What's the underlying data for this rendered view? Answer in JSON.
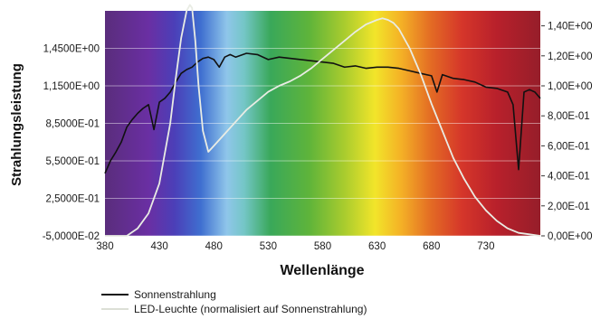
{
  "chart_data": {
    "type": "line",
    "xlabel": "Wellenlänge",
    "ylabel_left": "Strahlungsleistung",
    "ylabel_right": "",
    "xlim": [
      380,
      780
    ],
    "x_ticks": [
      "380",
      "430",
      "480",
      "530",
      "580",
      "630",
      "680",
      "730"
    ],
    "x_tick_values": [
      380,
      430,
      480,
      530,
      580,
      630,
      680,
      730
    ],
    "ylim_left": [
      -0.05,
      1.75
    ],
    "y_ticks_left": [
      "-5,0000E-02",
      "2,5000E-01",
      "5,5000E-01",
      "8,5000E-01",
      "1,1500E+00",
      "1,4500E+00"
    ],
    "y_tick_values_left": [
      -0.05,
      0.25,
      0.55,
      0.85,
      1.15,
      1.45
    ],
    "ylim_right": [
      0,
      1.5
    ],
    "y_ticks_right": [
      "0,00E+00",
      "2,00E-01",
      "4,00E-01",
      "6,00E-01",
      "8,00E-01",
      "1,00E+00",
      "1,20E+00",
      "1,40E+00"
    ],
    "y_tick_values_right": [
      0,
      0.2,
      0.4,
      0.6,
      0.8,
      1.0,
      1.2,
      1.4
    ],
    "grid": true,
    "background": "visible-spectrum-gradient",
    "legend_position": "bottom-left",
    "series": [
      {
        "name": "Sonnenstrahlung",
        "axis": "left",
        "color": "#111111",
        "x": [
          380,
          385,
          390,
          395,
          400,
          405,
          410,
          415,
          420,
          425,
          430,
          435,
          440,
          445,
          450,
          455,
          460,
          465,
          470,
          475,
          480,
          485,
          490,
          495,
          500,
          510,
          520,
          530,
          540,
          550,
          560,
          570,
          580,
          590,
          600,
          610,
          620,
          630,
          640,
          650,
          660,
          670,
          680,
          685,
          690,
          700,
          710,
          720,
          730,
          740,
          750,
          755,
          760,
          765,
          770,
          775,
          780
        ],
        "values": [
          0.45,
          0.55,
          0.62,
          0.7,
          0.82,
          0.88,
          0.93,
          0.97,
          1.0,
          0.8,
          1.02,
          1.05,
          1.1,
          1.18,
          1.25,
          1.28,
          1.3,
          1.34,
          1.37,
          1.38,
          1.36,
          1.3,
          1.38,
          1.4,
          1.38,
          1.41,
          1.4,
          1.36,
          1.38,
          1.37,
          1.36,
          1.35,
          1.34,
          1.33,
          1.3,
          1.31,
          1.29,
          1.3,
          1.3,
          1.29,
          1.27,
          1.25,
          1.23,
          1.1,
          1.24,
          1.21,
          1.2,
          1.18,
          1.14,
          1.13,
          1.1,
          1.0,
          0.48,
          1.1,
          1.12,
          1.1,
          1.05
        ]
      },
      {
        "name": "LED-Leuchte (normalisiert auf Sonnenstrahlung)",
        "axis": "right",
        "color": "#e9ece4",
        "x": [
          380,
          400,
          410,
          420,
          430,
          440,
          445,
          450,
          455,
          458,
          460,
          463,
          466,
          470,
          475,
          480,
          490,
          500,
          510,
          520,
          530,
          540,
          550,
          560,
          570,
          580,
          590,
          600,
          610,
          620,
          630,
          635,
          640,
          645,
          650,
          660,
          670,
          680,
          690,
          700,
          710,
          720,
          730,
          740,
          750,
          760,
          770,
          780
        ],
        "values": [
          0.0,
          0.0,
          0.05,
          0.15,
          0.35,
          0.75,
          1.05,
          1.32,
          1.5,
          1.54,
          1.52,
          1.3,
          1.0,
          0.7,
          0.56,
          0.6,
          0.68,
          0.76,
          0.84,
          0.9,
          0.96,
          1.0,
          1.03,
          1.07,
          1.12,
          1.18,
          1.24,
          1.3,
          1.36,
          1.41,
          1.44,
          1.45,
          1.44,
          1.42,
          1.38,
          1.25,
          1.08,
          0.88,
          0.7,
          0.52,
          0.38,
          0.26,
          0.17,
          0.1,
          0.05,
          0.02,
          0.01,
          0.0
        ]
      }
    ]
  }
}
